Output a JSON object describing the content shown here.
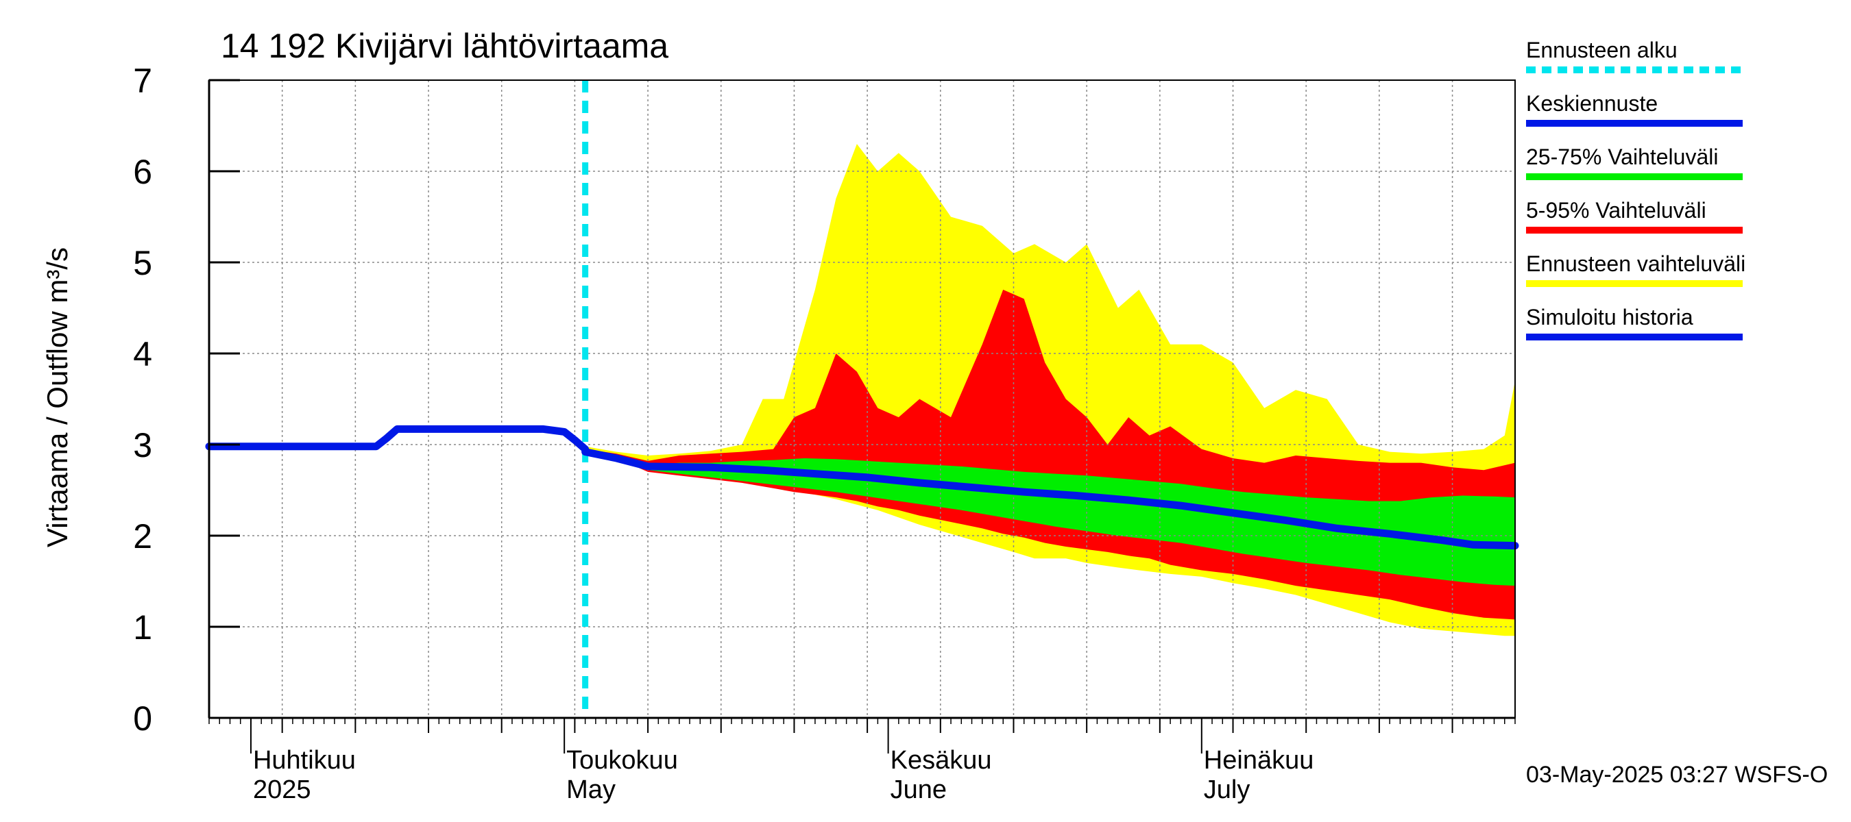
{
  "chart_data": {
    "type": "area",
    "title": "14 192 Kivijärvi lähtövirtaama",
    "ylabel": "Virtaama / Outflow    m³/s",
    "ylim": [
      0,
      7
    ],
    "yticks": [
      0,
      1,
      2,
      3,
      4,
      5,
      6,
      7
    ],
    "xlim": [
      "2025-03-28",
      "2025-07-31"
    ],
    "forecast_start": "2025-05-03",
    "month_labels": [
      {
        "date": "2025-04-01",
        "fi": "Huhtikuu",
        "en": "2025"
      },
      {
        "date": "2025-05-01",
        "fi": "Toukokuu",
        "en": "May"
      },
      {
        "date": "2025-06-01",
        "fi": "Kesäkuu",
        "en": "June"
      },
      {
        "date": "2025-07-01",
        "fi": "Heinäkuu",
        "en": "July"
      }
    ],
    "legend": [
      {
        "label": "Ennusteen alku",
        "color": "#00e5ee",
        "style": "dashed"
      },
      {
        "label": "Keskiennuste",
        "color": "#0018e6",
        "style": "solid"
      },
      {
        "label": "25-75% Vaihteluväli",
        "color": "#00ee00",
        "style": "solid"
      },
      {
        "label": "5-95% Vaihteluväli",
        "color": "#ff0000",
        "style": "solid"
      },
      {
        "label": "Ennusteen vaihteluväli",
        "color": "#ffff00",
        "style": "solid"
      },
      {
        "label": "Simuloitu historia",
        "color": "#0018e6",
        "style": "solid"
      }
    ],
    "footer": "03-May-2025 03:27 WSFS-O",
    "series": [
      {
        "name": "Simuloitu historia",
        "color": "#0018e6",
        "x": [
          "2025-03-28",
          "2025-04-13",
          "2025-04-14",
          "2025-04-15",
          "2025-04-29",
          "2025-05-01",
          "2025-05-02",
          "2025-05-03"
        ],
        "values": [
          2.98,
          2.98,
          3.07,
          3.17,
          3.17,
          3.14,
          3.05,
          2.95
        ]
      },
      {
        "name": "Keskiennuste",
        "color": "#0018e6",
        "x": [
          "2025-05-03",
          "2025-05-06",
          "2025-05-09",
          "2025-05-15",
          "2025-05-20",
          "2025-05-25",
          "2025-05-30",
          "2025-06-04",
          "2025-06-09",
          "2025-06-14",
          "2025-06-19",
          "2025-06-24",
          "2025-06-29",
          "2025-07-04",
          "2025-07-09",
          "2025-07-14",
          "2025-07-19",
          "2025-07-24",
          "2025-07-27",
          "2025-07-31"
        ],
        "values": [
          2.92,
          2.85,
          2.76,
          2.75,
          2.72,
          2.68,
          2.64,
          2.58,
          2.53,
          2.48,
          2.44,
          2.39,
          2.33,
          2.25,
          2.17,
          2.08,
          2.02,
          1.95,
          1.9,
          1.89
        ]
      }
    ],
    "bands": [
      {
        "name": "Ennusteen vaihteluväli",
        "color": "#ffff00",
        "x": [
          "2025-05-03",
          "2025-05-06",
          "2025-05-09",
          "2025-05-12",
          "2025-05-15",
          "2025-05-18",
          "2025-05-20",
          "2025-05-22",
          "2025-05-25",
          "2025-05-27",
          "2025-05-29",
          "2025-05-31",
          "2025-06-02",
          "2025-06-04",
          "2025-06-07",
          "2025-06-10",
          "2025-06-13",
          "2025-06-15",
          "2025-06-18",
          "2025-06-20",
          "2025-06-23",
          "2025-06-25",
          "2025-06-28",
          "2025-07-01",
          "2025-07-04",
          "2025-07-07",
          "2025-07-10",
          "2025-07-13",
          "2025-07-16",
          "2025-07-19",
          "2025-07-22",
          "2025-07-25",
          "2025-07-28",
          "2025-07-30",
          "2025-07-31"
        ],
        "upper": [
          2.98,
          2.92,
          2.88,
          2.9,
          2.93,
          3.0,
          3.5,
          3.5,
          4.7,
          5.7,
          6.3,
          6.0,
          6.2,
          6.0,
          5.5,
          5.4,
          5.1,
          5.2,
          5.0,
          5.2,
          4.5,
          4.7,
          4.1,
          4.1,
          3.9,
          3.4,
          3.6,
          3.5,
          3.0,
          2.92,
          2.9,
          2.92,
          2.95,
          3.1,
          3.7
        ],
        "lower": [
          2.92,
          2.85,
          2.72,
          2.68,
          2.65,
          2.6,
          2.55,
          2.5,
          2.45,
          2.4,
          2.34,
          2.28,
          2.2,
          2.12,
          2.02,
          1.92,
          1.82,
          1.75,
          1.75,
          1.7,
          1.65,
          1.62,
          1.58,
          1.55,
          1.48,
          1.42,
          1.35,
          1.25,
          1.15,
          1.05,
          0.98,
          0.95,
          0.92,
          0.9,
          0.9
        ]
      },
      {
        "name": "5-95% Vaihteluväli",
        "color": "#ff0000",
        "x": [
          "2025-05-03",
          "2025-05-06",
          "2025-05-09",
          "2025-05-12",
          "2025-05-15",
          "2025-05-18",
          "2025-05-21",
          "2025-05-23",
          "2025-05-25",
          "2025-05-27",
          "2025-05-29",
          "2025-05-31",
          "2025-06-02",
          "2025-06-04",
          "2025-06-07",
          "2025-06-10",
          "2025-06-12",
          "2025-06-14",
          "2025-06-16",
          "2025-06-18",
          "2025-06-20",
          "2025-06-22",
          "2025-06-24",
          "2025-06-26",
          "2025-06-28",
          "2025-07-01",
          "2025-07-04",
          "2025-07-07",
          "2025-07-10",
          "2025-07-13",
          "2025-07-16",
          "2025-07-19",
          "2025-07-22",
          "2025-07-25",
          "2025-07-28",
          "2025-07-31"
        ],
        "upper": [
          2.95,
          2.9,
          2.82,
          2.88,
          2.9,
          2.92,
          2.95,
          3.3,
          3.4,
          4.0,
          3.8,
          3.4,
          3.3,
          3.5,
          3.3,
          4.1,
          4.7,
          4.6,
          3.9,
          3.5,
          3.3,
          3.0,
          3.3,
          3.1,
          3.2,
          2.95,
          2.85,
          2.8,
          2.88,
          2.85,
          2.82,
          2.8,
          2.8,
          2.75,
          2.72,
          2.8
        ],
        "lower": [
          2.92,
          2.85,
          2.7,
          2.66,
          2.62,
          2.58,
          2.52,
          2.48,
          2.45,
          2.42,
          2.38,
          2.32,
          2.28,
          2.22,
          2.15,
          2.08,
          2.02,
          1.98,
          1.92,
          1.88,
          1.85,
          1.82,
          1.78,
          1.75,
          1.68,
          1.62,
          1.58,
          1.52,
          1.45,
          1.4,
          1.35,
          1.3,
          1.22,
          1.15,
          1.1,
          1.08
        ]
      },
      {
        "name": "25-75% Vaihteluväli",
        "color": "#00ee00",
        "x": [
          "2025-05-03",
          "2025-05-06",
          "2025-05-09",
          "2025-05-12",
          "2025-05-15",
          "2025-05-18",
          "2025-05-21",
          "2025-05-24",
          "2025-05-27",
          "2025-05-30",
          "2025-06-02",
          "2025-06-05",
          "2025-06-08",
          "2025-06-11",
          "2025-06-14",
          "2025-06-17",
          "2025-06-20",
          "2025-06-23",
          "2025-06-26",
          "2025-06-29",
          "2025-07-02",
          "2025-07-05",
          "2025-07-08",
          "2025-07-11",
          "2025-07-14",
          "2025-07-17",
          "2025-07-20",
          "2025-07-23",
          "2025-07-26",
          "2025-07-29",
          "2025-07-31"
        ],
        "upper": [
          2.94,
          2.88,
          2.78,
          2.8,
          2.8,
          2.82,
          2.83,
          2.85,
          2.84,
          2.82,
          2.8,
          2.78,
          2.76,
          2.73,
          2.7,
          2.68,
          2.66,
          2.63,
          2.6,
          2.57,
          2.52,
          2.48,
          2.45,
          2.42,
          2.4,
          2.38,
          2.38,
          2.42,
          2.44,
          2.43,
          2.42
        ],
        "lower": [
          2.92,
          2.85,
          2.72,
          2.68,
          2.64,
          2.6,
          2.56,
          2.52,
          2.48,
          2.43,
          2.38,
          2.33,
          2.28,
          2.22,
          2.16,
          2.1,
          2.05,
          2.0,
          1.96,
          1.92,
          1.86,
          1.8,
          1.75,
          1.7,
          1.66,
          1.62,
          1.57,
          1.53,
          1.49,
          1.46,
          1.45
        ]
      }
    ]
  }
}
